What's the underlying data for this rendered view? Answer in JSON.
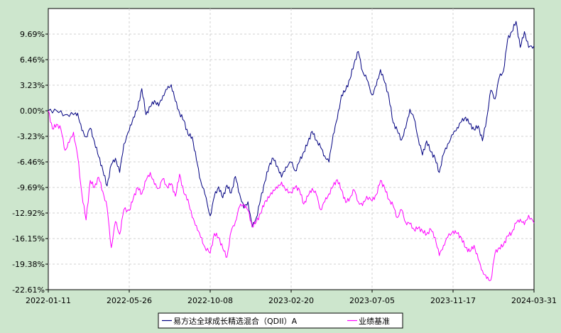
{
  "chart_data": {
    "type": "line",
    "x_tick_labels": [
      "2022-01-11",
      "2022-05-26",
      "2022-10-08",
      "2023-02-20",
      "2023-07-05",
      "2023-11-17",
      "2024-03-31"
    ],
    "y_tick_labels": [
      "9.69%",
      "6.46%",
      "3.23%",
      "0.00%",
      "-3.23%",
      "-6.46%",
      "-9.69%",
      "-12.92%",
      "-16.15%",
      "-19.38%",
      "-22.61%"
    ],
    "ylim": [
      -22.61,
      12.92
    ],
    "xlim": [
      "2022-01-11",
      "2024-03-31"
    ],
    "grid": true,
    "legend_position": "bottom-center",
    "series": [
      {
        "name": "易方达全球成长精选混合（QDII）A",
        "color": "#000080",
        "points": [
          [
            "2022-01-11",
            0.0
          ],
          [
            "2022-01-25",
            0.0
          ],
          [
            "2022-02-08",
            -0.5
          ],
          [
            "2022-02-22",
            -0.5
          ],
          [
            "2022-03-01",
            -0.3
          ],
          [
            "2022-03-08",
            -2.5
          ],
          [
            "2022-03-15",
            -3.3
          ],
          [
            "2022-03-22",
            -2.2
          ],
          [
            "2022-03-29",
            -3.9
          ],
          [
            "2022-04-05",
            -5.8
          ],
          [
            "2022-04-12",
            -7.5
          ],
          [
            "2022-04-19",
            -9.5
          ],
          [
            "2022-04-26",
            -6.8
          ],
          [
            "2022-05-03",
            -6.0
          ],
          [
            "2022-05-10",
            -7.8
          ],
          [
            "2022-05-17",
            -4.2
          ],
          [
            "2022-05-26",
            -2.5
          ],
          [
            "2022-06-02",
            -0.8
          ],
          [
            "2022-06-09",
            0.3
          ],
          [
            "2022-06-16",
            2.8
          ],
          [
            "2022-06-23",
            -0.5
          ],
          [
            "2022-06-30",
            0.5
          ],
          [
            "2022-07-07",
            1.3
          ],
          [
            "2022-07-14",
            0.6
          ],
          [
            "2022-07-21",
            1.9
          ],
          [
            "2022-07-28",
            2.7
          ],
          [
            "2022-08-04",
            3.3
          ],
          [
            "2022-08-11",
            1.2
          ],
          [
            "2022-08-18",
            -0.3
          ],
          [
            "2022-08-25",
            -1.2
          ],
          [
            "2022-09-01",
            -3.0
          ],
          [
            "2022-09-08",
            -3.3
          ],
          [
            "2022-09-15",
            -6.2
          ],
          [
            "2022-09-22",
            -8.8
          ],
          [
            "2022-09-29",
            -10.5
          ],
          [
            "2022-10-08",
            -13.3
          ],
          [
            "2022-10-15",
            -10.8
          ],
          [
            "2022-10-22",
            -9.6
          ],
          [
            "2022-10-29",
            -11.0
          ],
          [
            "2022-11-05",
            -9.4
          ],
          [
            "2022-11-12",
            -10.4
          ],
          [
            "2022-11-19",
            -8.3
          ],
          [
            "2022-11-26",
            -10.5
          ],
          [
            "2022-12-03",
            -12.3
          ],
          [
            "2022-12-10",
            -11.5
          ],
          [
            "2022-12-17",
            -14.7
          ],
          [
            "2022-12-24",
            -13.5
          ],
          [
            "2022-12-31",
            -11.2
          ],
          [
            "2023-01-07",
            -9.0
          ],
          [
            "2023-01-14",
            -7.0
          ],
          [
            "2023-01-21",
            -6.0
          ],
          [
            "2023-01-28",
            -7.0
          ],
          [
            "2023-02-04",
            -8.4
          ],
          [
            "2023-02-11",
            -7.1
          ],
          [
            "2023-02-20",
            -6.5
          ],
          [
            "2023-02-27",
            -7.6
          ],
          [
            "2023-03-06",
            -6.4
          ],
          [
            "2023-03-13",
            -5.2
          ],
          [
            "2023-03-20",
            -4.0
          ],
          [
            "2023-03-27",
            -2.6
          ],
          [
            "2023-04-03",
            -3.7
          ],
          [
            "2023-04-10",
            -4.6
          ],
          [
            "2023-04-17",
            -5.7
          ],
          [
            "2023-04-24",
            -6.5
          ],
          [
            "2023-05-01",
            -3.0
          ],
          [
            "2023-05-08",
            -1.0
          ],
          [
            "2023-05-15",
            2.0
          ],
          [
            "2023-05-22",
            2.6
          ],
          [
            "2023-05-29",
            4.0
          ],
          [
            "2023-06-05",
            6.0
          ],
          [
            "2023-06-12",
            7.5
          ],
          [
            "2023-06-19",
            5.0
          ],
          [
            "2023-06-26",
            4.0
          ],
          [
            "2023-07-05",
            2.0
          ],
          [
            "2023-07-12",
            3.2
          ],
          [
            "2023-07-19",
            5.2
          ],
          [
            "2023-07-26",
            3.6
          ],
          [
            "2023-08-02",
            1.8
          ],
          [
            "2023-08-09",
            -1.5
          ],
          [
            "2023-08-16",
            -2.5
          ],
          [
            "2023-08-23",
            -3.7
          ],
          [
            "2023-08-30",
            -2.2
          ],
          [
            "2023-09-06",
            0.2
          ],
          [
            "2023-09-13",
            -1.0
          ],
          [
            "2023-09-20",
            -3.5
          ],
          [
            "2023-09-27",
            -5.6
          ],
          [
            "2023-10-04",
            -3.8
          ],
          [
            "2023-10-11",
            -5.2
          ],
          [
            "2023-10-18",
            -6.0
          ],
          [
            "2023-10-25",
            -7.8
          ],
          [
            "2023-11-01",
            -5.5
          ],
          [
            "2023-11-08",
            -4.2
          ],
          [
            "2023-11-17",
            -3.0
          ],
          [
            "2023-11-24",
            -2.1
          ],
          [
            "2023-12-01",
            -1.4
          ],
          [
            "2023-12-08",
            -0.8
          ],
          [
            "2023-12-15",
            -1.7
          ],
          [
            "2023-12-22",
            -2.4
          ],
          [
            "2023-12-29",
            -1.9
          ],
          [
            "2024-01-05",
            -3.8
          ],
          [
            "2024-01-12",
            -1.0
          ],
          [
            "2024-01-19",
            2.6
          ],
          [
            "2024-01-26",
            1.5
          ],
          [
            "2024-02-02",
            4.2
          ],
          [
            "2024-02-09",
            5.0
          ],
          [
            "2024-02-16",
            9.0
          ],
          [
            "2024-02-23",
            10.0
          ],
          [
            "2024-03-01",
            11.3
          ],
          [
            "2024-03-08",
            8.0
          ],
          [
            "2024-03-15",
            10.0
          ],
          [
            "2024-03-22",
            8.0
          ],
          [
            "2024-03-31",
            8.2
          ]
        ]
      },
      {
        "name": "业绩基准",
        "color": "#ff00ff",
        "points": [
          [
            "2022-01-11",
            0.0
          ],
          [
            "2022-01-18",
            -2.3
          ],
          [
            "2022-01-25",
            -1.7
          ],
          [
            "2022-02-01",
            -2.3
          ],
          [
            "2022-02-08",
            -5.0
          ],
          [
            "2022-02-15",
            -4.0
          ],
          [
            "2022-02-22",
            -2.7
          ],
          [
            "2022-03-01",
            -5.8
          ],
          [
            "2022-03-08",
            -10.5
          ],
          [
            "2022-03-15",
            -13.8
          ],
          [
            "2022-03-22",
            -8.8
          ],
          [
            "2022-03-29",
            -9.7
          ],
          [
            "2022-04-05",
            -8.4
          ],
          [
            "2022-04-12",
            -10.2
          ],
          [
            "2022-04-19",
            -12.2
          ],
          [
            "2022-04-26",
            -17.3
          ],
          [
            "2022-05-03",
            -14.0
          ],
          [
            "2022-05-10",
            -15.6
          ],
          [
            "2022-05-17",
            -12.5
          ],
          [
            "2022-05-26",
            -12.6
          ],
          [
            "2022-06-02",
            -11.0
          ],
          [
            "2022-06-09",
            -9.7
          ],
          [
            "2022-06-16",
            -10.5
          ],
          [
            "2022-06-23",
            -8.8
          ],
          [
            "2022-06-30",
            -7.8
          ],
          [
            "2022-07-07",
            -9.3
          ],
          [
            "2022-07-14",
            -9.8
          ],
          [
            "2022-07-21",
            -8.6
          ],
          [
            "2022-07-28",
            -9.6
          ],
          [
            "2022-08-04",
            -9.2
          ],
          [
            "2022-08-11",
            -10.8
          ],
          [
            "2022-08-18",
            -8.0
          ],
          [
            "2022-08-25",
            -10.4
          ],
          [
            "2022-09-01",
            -11.2
          ],
          [
            "2022-09-08",
            -13.5
          ],
          [
            "2022-09-15",
            -14.5
          ],
          [
            "2022-09-22",
            -16.0
          ],
          [
            "2022-09-29",
            -17.2
          ],
          [
            "2022-10-08",
            -18.0
          ],
          [
            "2022-10-15",
            -15.5
          ],
          [
            "2022-10-22",
            -16.0
          ],
          [
            "2022-10-29",
            -17.4
          ],
          [
            "2022-11-05",
            -18.5
          ],
          [
            "2022-11-12",
            -15.2
          ],
          [
            "2022-11-19",
            -14.0
          ],
          [
            "2022-11-26",
            -12.1
          ],
          [
            "2022-12-03",
            -11.8
          ],
          [
            "2022-12-10",
            -12.6
          ],
          [
            "2022-12-17",
            -14.6
          ],
          [
            "2022-12-24",
            -14.0
          ],
          [
            "2022-12-31",
            -13.0
          ],
          [
            "2023-01-07",
            -11.5
          ],
          [
            "2023-01-14",
            -11.0
          ],
          [
            "2023-01-21",
            -10.0
          ],
          [
            "2023-01-28",
            -9.8
          ],
          [
            "2023-02-04",
            -9.0
          ],
          [
            "2023-02-11",
            -10.1
          ],
          [
            "2023-02-20",
            -10.3
          ],
          [
            "2023-02-27",
            -9.6
          ],
          [
            "2023-03-06",
            -10.0
          ],
          [
            "2023-03-13",
            -11.8
          ],
          [
            "2023-03-20",
            -10.8
          ],
          [
            "2023-03-27",
            -9.8
          ],
          [
            "2023-04-03",
            -10.6
          ],
          [
            "2023-04-10",
            -12.5
          ],
          [
            "2023-04-17",
            -11.5
          ],
          [
            "2023-04-24",
            -10.5
          ],
          [
            "2023-05-01",
            -9.5
          ],
          [
            "2023-05-08",
            -8.7
          ],
          [
            "2023-05-15",
            -10.0
          ],
          [
            "2023-05-22",
            -11.6
          ],
          [
            "2023-05-29",
            -11.0
          ],
          [
            "2023-06-05",
            -10.0
          ],
          [
            "2023-06-12",
            -11.5
          ],
          [
            "2023-06-19",
            -12.0
          ],
          [
            "2023-06-26",
            -10.8
          ],
          [
            "2023-07-05",
            -11.4
          ],
          [
            "2023-07-12",
            -10.6
          ],
          [
            "2023-07-19",
            -8.8
          ],
          [
            "2023-07-26",
            -9.8
          ],
          [
            "2023-08-02",
            -11.2
          ],
          [
            "2023-08-09",
            -12.0
          ],
          [
            "2023-08-16",
            -13.5
          ],
          [
            "2023-08-23",
            -12.5
          ],
          [
            "2023-08-30",
            -14.1
          ],
          [
            "2023-09-06",
            -14.3
          ],
          [
            "2023-09-13",
            -15.0
          ],
          [
            "2023-09-20",
            -14.8
          ],
          [
            "2023-09-27",
            -15.2
          ],
          [
            "2023-10-04",
            -15.6
          ],
          [
            "2023-10-11",
            -15.0
          ],
          [
            "2023-10-18",
            -16.0
          ],
          [
            "2023-10-25",
            -18.3
          ],
          [
            "2023-11-01",
            -17.0
          ],
          [
            "2023-11-08",
            -16.0
          ],
          [
            "2023-11-17",
            -15.2
          ],
          [
            "2023-11-24",
            -15.5
          ],
          [
            "2023-12-01",
            -16.1
          ],
          [
            "2023-12-08",
            -17.3
          ],
          [
            "2023-12-15",
            -17.8
          ],
          [
            "2023-12-22",
            -17.0
          ],
          [
            "2023-12-29",
            -18.8
          ],
          [
            "2024-01-05",
            -20.2
          ],
          [
            "2024-01-12",
            -21.2
          ],
          [
            "2024-01-19",
            -21.4
          ],
          [
            "2024-01-26",
            -18.0
          ],
          [
            "2024-02-02",
            -17.3
          ],
          [
            "2024-02-09",
            -17.0
          ],
          [
            "2024-02-16",
            -15.8
          ],
          [
            "2024-02-23",
            -15.4
          ],
          [
            "2024-03-01",
            -14.2
          ],
          [
            "2024-03-08",
            -13.7
          ],
          [
            "2024-03-15",
            -14.4
          ],
          [
            "2024-03-22",
            -13.2
          ],
          [
            "2024-03-31",
            -14.2
          ]
        ]
      }
    ]
  }
}
